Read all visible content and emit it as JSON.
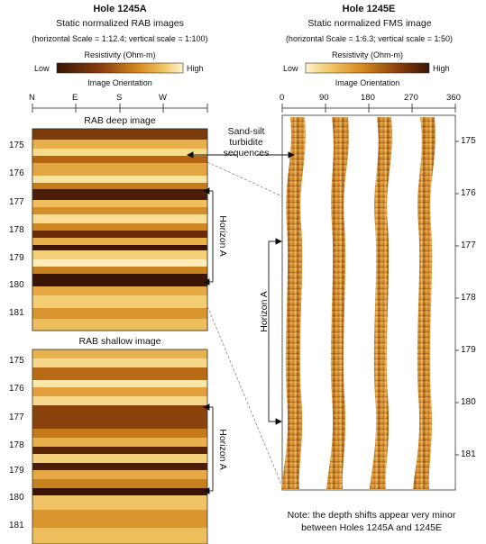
{
  "left": {
    "hole_title": "Hole 1245A",
    "subtitle": "Static normalized RAB images",
    "scale_note": "(horizontal Scale = 1:12.4; vertical scale = 1:100)",
    "legend_title": "Resistivity (Ohm-m)",
    "legend_low": "Low",
    "legend_high": "High",
    "orientation_label": "Image Orientation",
    "orientation_ticks": [
      "N",
      "E",
      "S",
      "W"
    ],
    "deep_title": "RAB deep image",
    "shallow_title": "RAB shallow image",
    "depths": [
      "175",
      "176",
      "177",
      "178",
      "179",
      "180",
      "181"
    ],
    "horizon_label": "Horizon A"
  },
  "right": {
    "hole_title": "Hole 1245E",
    "subtitle": "Static normalized FMS image",
    "scale_note": "(horizontal Scale = 1:6.3; vertical scale = 1:50)",
    "legend_title": "Resistivity (Ohm-m)",
    "legend_low": "Low",
    "legend_high": "High",
    "orientation_label": "Image Orientation",
    "orientation_ticks": [
      "0",
      "90",
      "180",
      "270",
      "360"
    ],
    "depths": [
      "175",
      "176",
      "177",
      "178",
      "179",
      "180",
      "181"
    ],
    "horizon_label": "Horizon A"
  },
  "annotation": {
    "line1": "Sand-silt",
    "line2": "turbidite",
    "line3": "sequences"
  },
  "note": {
    "line1": "Note: the depth shifts appear very minor",
    "line2": "between Holes 1245A and 1245E"
  },
  "colors": {
    "dark": "#4a1e08",
    "mid": "#b5650f",
    "light": "#f0c060",
    "pale": "#fbe9b0"
  }
}
